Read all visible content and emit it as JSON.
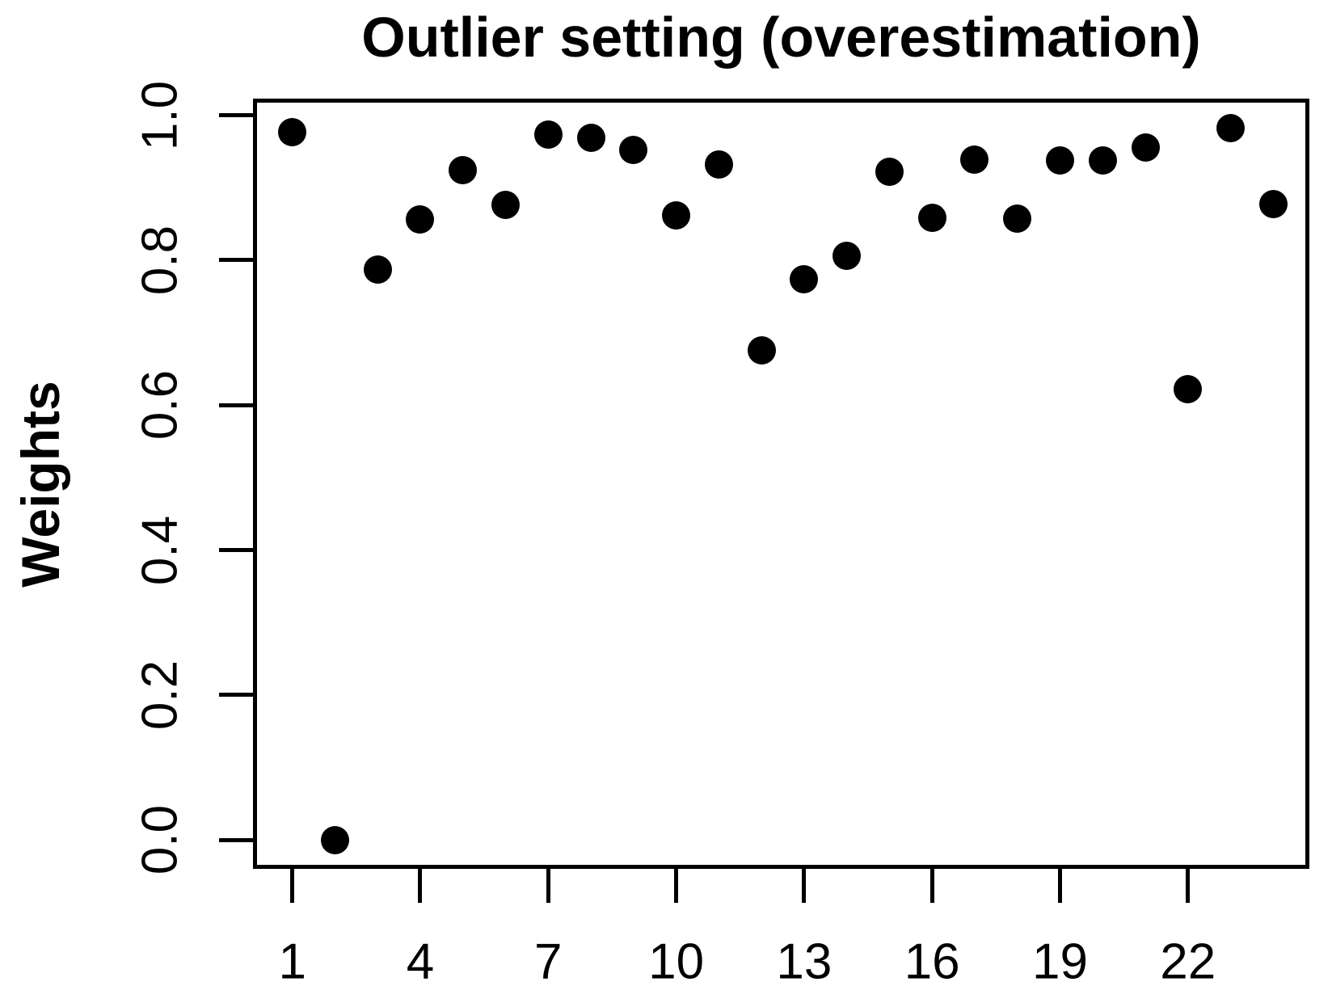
{
  "chart_data": {
    "type": "scatter",
    "title": "Outlier setting (overestimation)",
    "xlabel": "",
    "ylabel": "Weights",
    "x": [
      1,
      2,
      3,
      4,
      5,
      6,
      7,
      8,
      9,
      10,
      11,
      12,
      13,
      14,
      15,
      16,
      17,
      18,
      19,
      20,
      21,
      22,
      23,
      24
    ],
    "y": [
      0.977,
      0.0,
      0.787,
      0.856,
      0.924,
      0.876,
      0.973,
      0.969,
      0.952,
      0.862,
      0.932,
      0.675,
      0.774,
      0.806,
      0.922,
      0.859,
      0.939,
      0.857,
      0.938,
      0.938,
      0.956,
      0.622,
      0.982,
      0.877
    ],
    "x_tick_values": [
      1,
      4,
      7,
      10,
      13,
      16,
      19,
      22
    ],
    "x_tick_labels": [
      "1",
      "4",
      "7",
      "10",
      "13",
      "16",
      "19",
      "22"
    ],
    "y_tick_values": [
      0.0,
      0.2,
      0.4,
      0.6,
      0.8,
      1.0
    ],
    "y_tick_labels": [
      "0.0",
      "0.2",
      "0.4",
      "0.6",
      "0.8",
      "1.0"
    ],
    "xlim": [
      0.077,
      24.847
    ],
    "ylim": [
      -0.04,
      1.023
    ],
    "grid": false,
    "legend": null,
    "marker": "filled-circle",
    "marker_diameter_px": 35,
    "point_color": "#000000",
    "axis_color": "#000000",
    "background_color": "#ffffff"
  }
}
